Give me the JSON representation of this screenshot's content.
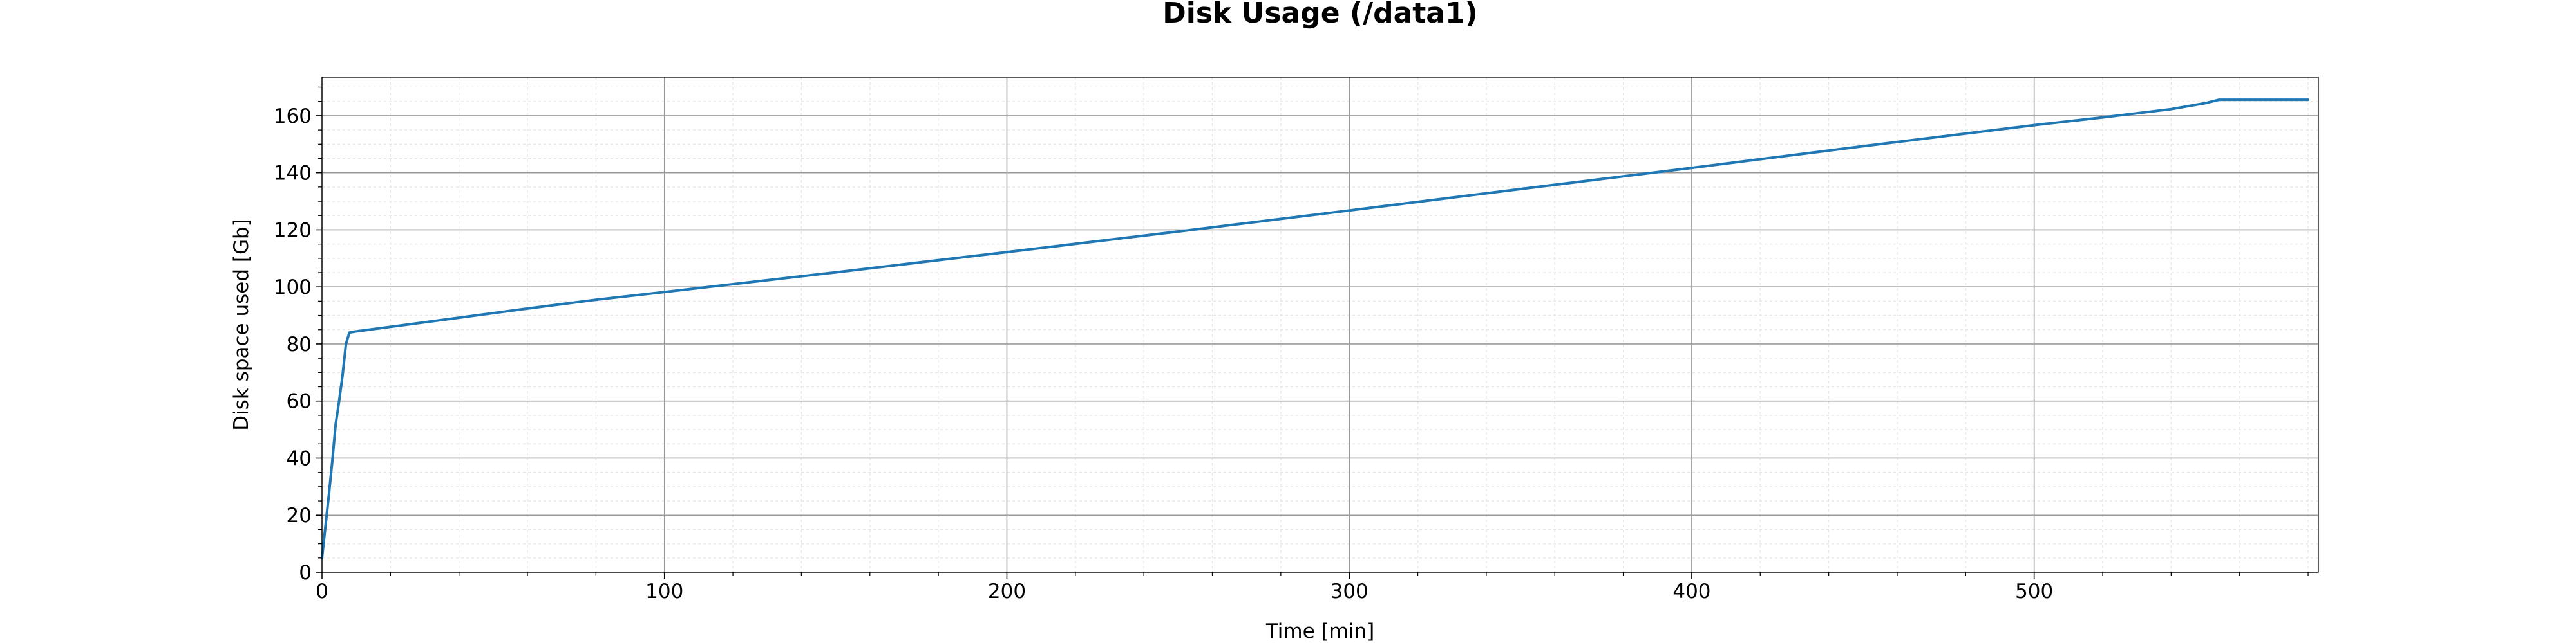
{
  "chart_data": {
    "type": "line",
    "title": "Disk Usage (/data1)",
    "xlabel": "Time [min]",
    "ylabel": "Disk space used [Gb]",
    "xlim": [
      0,
      583
    ],
    "ylim": [
      0,
      173.5
    ],
    "x_ticks": [
      0,
      100,
      200,
      300,
      400,
      500
    ],
    "y_ticks": [
      0,
      20,
      40,
      60,
      80,
      100,
      120,
      140,
      160
    ],
    "grid": true,
    "minor_grid": true,
    "line_color": "#1f77b4",
    "series": [
      {
        "x": [
          0,
          1,
          2,
          3,
          4,
          5,
          6,
          7,
          8,
          9,
          10,
          20,
          40,
          60,
          80,
          100,
          150,
          200,
          250,
          300,
          350,
          400,
          450,
          500,
          520,
          540,
          550,
          554,
          560,
          580
        ],
        "y": [
          5,
          16,
          27,
          39,
          52,
          60,
          69,
          80,
          84,
          84.2,
          84.4,
          86,
          89.2,
          92.4,
          95.5,
          98.2,
          105.1,
          112.2,
          119.4,
          126.8,
          134.3,
          141.7,
          149.3,
          156.7,
          159.4,
          162.3,
          164.4,
          165.6,
          165.6,
          165.6
        ]
      }
    ]
  }
}
